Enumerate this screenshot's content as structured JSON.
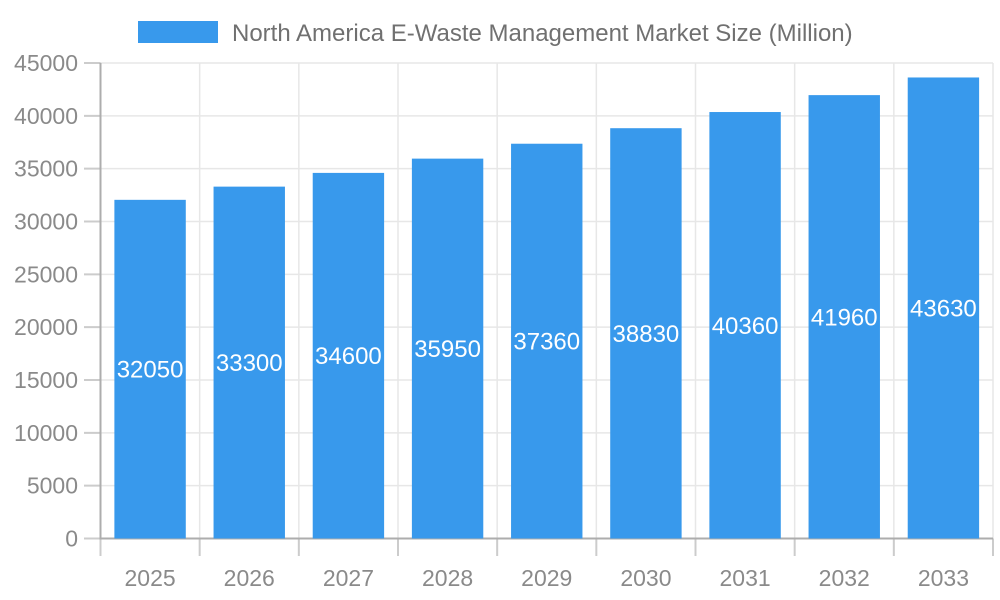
{
  "colors": {
    "bar": "#3899EC",
    "bar_label": "#FFFFFF",
    "grid": "#E7E7E7",
    "axis": "#ADADAD",
    "tick": "#CCCCCC",
    "tick_label": "#8A8A8A",
    "legend_label": "#707070",
    "background": "#FFFFFF"
  },
  "chart_data": {
    "type": "bar",
    "title": "North America E-Waste Management Market Size (Million)",
    "categories": [
      "2025",
      "2026",
      "2027",
      "2028",
      "2029",
      "2030",
      "2031",
      "2032",
      "2033"
    ],
    "series": [
      {
        "name": "North America E-Waste Management Market Size (Million)",
        "values": [
          32050,
          33300,
          34600,
          35950,
          37360,
          38830,
          40360,
          41960,
          43630
        ]
      }
    ],
    "xlabel": "",
    "ylabel": "",
    "ylim": [
      0,
      45000
    ],
    "ytick_step": 5000,
    "yticks": [
      0,
      5000,
      10000,
      15000,
      20000,
      25000,
      30000,
      35000,
      40000,
      45000
    ],
    "grid": true,
    "legend_position": "top",
    "value_labels": "inside-center",
    "bar_color": "#3899EC"
  }
}
